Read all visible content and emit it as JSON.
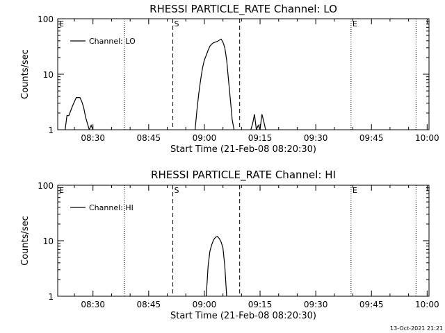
{
  "footer": {
    "timestamp": "13-Oct-2021 21:21"
  },
  "chart_data": [
    {
      "type": "line",
      "title": "RHESSI PARTICLE_RATE Channel: LO",
      "xlabel": "Start Time (21-Feb-08 08:20:30)",
      "ylabel": "Counts/sec",
      "y_scale": "log",
      "ylim": [
        1,
        100
      ],
      "xlim": [
        "08:20:30",
        "10:00:30"
      ],
      "x_ticks": [
        "08:30",
        "08:45",
        "09:00",
        "09:15",
        "09:30",
        "09:45",
        "10:00"
      ],
      "y_ticks": [
        "1",
        "10",
        "100"
      ],
      "legend": {
        "position": "top-left",
        "entries": [
          "Channel: LO"
        ]
      },
      "markers": [
        {
          "label": "E",
          "time": "08:20:30",
          "style": "dotted"
        },
        {
          "label": "",
          "time": "08:38:30",
          "style": "dotted"
        },
        {
          "label": "S",
          "time": "08:51:30",
          "style": "dashed"
        },
        {
          "label": "",
          "time": "09:09:30",
          "style": "dashed"
        },
        {
          "label": "E",
          "time": "09:39:30",
          "style": "dotted"
        },
        {
          "label": "",
          "time": "09:57:00",
          "style": "dotted"
        }
      ],
      "series": [
        {
          "name": "Channel: LO",
          "segments": [
            {
              "x": [
                "08:22:30",
                "08:23:00",
                "08:23:30",
                "08:24:00",
                "08:24:30",
                "08:25:00",
                "08:25:30",
                "08:26:00",
                "08:26:30",
                "08:27:00",
                "08:27:30",
                "08:28:00",
                "08:28:30",
                "08:29:00",
                "08:29:30",
                "08:30:00"
              ],
              "y": [
                1,
                1.8,
                1.8,
                2.2,
                2.7,
                3.2,
                3.8,
                3.8,
                3.8,
                3.2,
                2.5,
                1.7,
                1.3,
                1,
                1.2,
                1
              ]
            },
            {
              "x": [
                "08:57:30",
                "08:58:00",
                "08:58:30",
                "08:59:00",
                "08:59:30",
                "09:00:00",
                "09:00:30",
                "09:01:00",
                "09:01:30",
                "09:02:00",
                "09:02:30",
                "09:03:00",
                "09:03:30",
                "09:04:00",
                "09:04:30",
                "09:05:00",
                "09:05:30",
                "09:06:00",
                "09:06:30",
                "09:07:00",
                "09:07:30",
                "09:08:00"
              ],
              "y": [
                1,
                2.3,
                4.5,
                8,
                13,
                18,
                22,
                27,
                32,
                35,
                37,
                38,
                39,
                41,
                43,
                38,
                30,
                18,
                8,
                3.5,
                1.5,
                1
              ]
            },
            {
              "x": [
                "09:12:30",
                "09:13:00",
                "09:13:30",
                "09:14:00",
                "09:14:30",
                "09:15:00",
                "09:15:30",
                "09:16:00",
                "09:16:30"
              ],
              "y": [
                1,
                1.3,
                1.9,
                1,
                1.2,
                1,
                1.9,
                1.4,
                1
              ]
            }
          ]
        }
      ]
    },
    {
      "type": "line",
      "title": "RHESSI PARTICLE_RATE Channel: HI",
      "xlabel": "Start Time (21-Feb-08 08:20:30)",
      "ylabel": "Counts/sec",
      "y_scale": "log",
      "ylim": [
        1,
        100
      ],
      "xlim": [
        "08:20:30",
        "10:00:30"
      ],
      "x_ticks": [
        "08:30",
        "08:45",
        "09:00",
        "09:15",
        "09:30",
        "09:45",
        "10:00"
      ],
      "y_ticks": [
        "1",
        "10",
        "100"
      ],
      "legend": {
        "position": "top-left",
        "entries": [
          "Channel: HI"
        ]
      },
      "markers": [
        {
          "label": "E",
          "time": "08:20:30",
          "style": "dotted"
        },
        {
          "label": "",
          "time": "08:38:30",
          "style": "dotted"
        },
        {
          "label": "S",
          "time": "08:51:30",
          "style": "dashed"
        },
        {
          "label": "",
          "time": "09:09:30",
          "style": "dashed"
        },
        {
          "label": "E",
          "time": "09:39:30",
          "style": "dotted"
        },
        {
          "label": "",
          "time": "09:57:00",
          "style": "dotted"
        }
      ],
      "series": [
        {
          "name": "Channel: HI",
          "segments": [
            {
              "x": [
                "09:00:30",
                "09:01:00",
                "09:01:30",
                "09:02:00",
                "09:02:30",
                "09:03:00",
                "09:03:30",
                "09:04:00",
                "09:04:30",
                "09:05:00",
                "09:05:30",
                "09:06:00"
              ],
              "y": [
                1,
                3.5,
                6.5,
                8.5,
                10.5,
                11.5,
                12,
                11,
                9.5,
                7.5,
                3.5,
                1
              ]
            }
          ]
        }
      ]
    }
  ]
}
